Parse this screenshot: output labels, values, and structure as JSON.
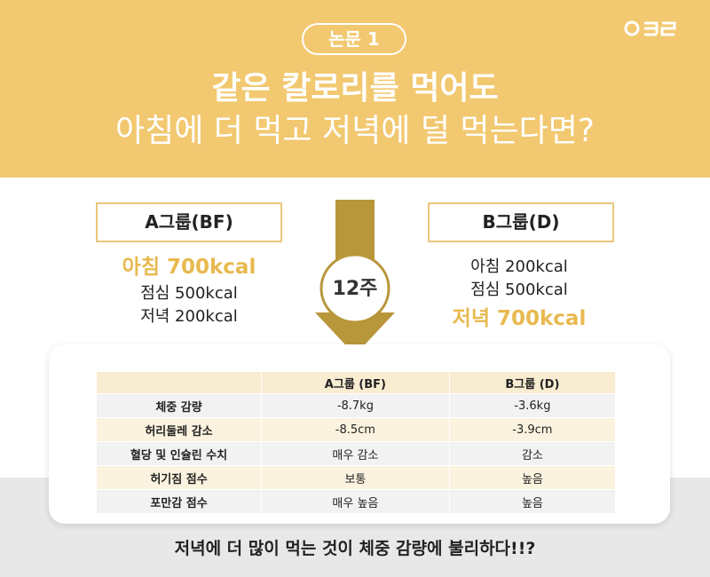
{
  "header": {
    "badge": "논문 1",
    "title": "같은 칼로리를 먹어도",
    "subtitle": "아침에 더 먹고 저녁에 덜 먹는다면?"
  },
  "groups": [
    {
      "label": "A그룹(BF)",
      "meals": [
        "아침 700kcal",
        "점심 500kcal",
        "저녁 200kcal"
      ],
      "highlight": 0
    },
    {
      "label": "B그룹(D)",
      "meals": [
        "아침 200kcal",
        "점심 500kcal",
        "저녁 700kcal"
      ],
      "highlight": 2
    }
  ],
  "duration": "12주",
  "table": {
    "header": [
      "A그룹 (BF)",
      "B그룹 (D)"
    ],
    "rows": [
      [
        "체중 감량",
        "-8.7kg",
        "-3.6kg"
      ],
      [
        "허리둘레 감소",
        "-8.5cm",
        "-3.9cm"
      ],
      [
        "혈당 및 인슐린 수치",
        "매우 감소",
        "감소"
      ],
      [
        "허기짐 점수",
        "보통",
        "높음"
      ],
      [
        "포만감 점수",
        "매우 높음",
        "높음"
      ]
    ]
  },
  "footer": "저녁에 더 많이 먹는 것이 체중 감량에 불리하다!!?"
}
